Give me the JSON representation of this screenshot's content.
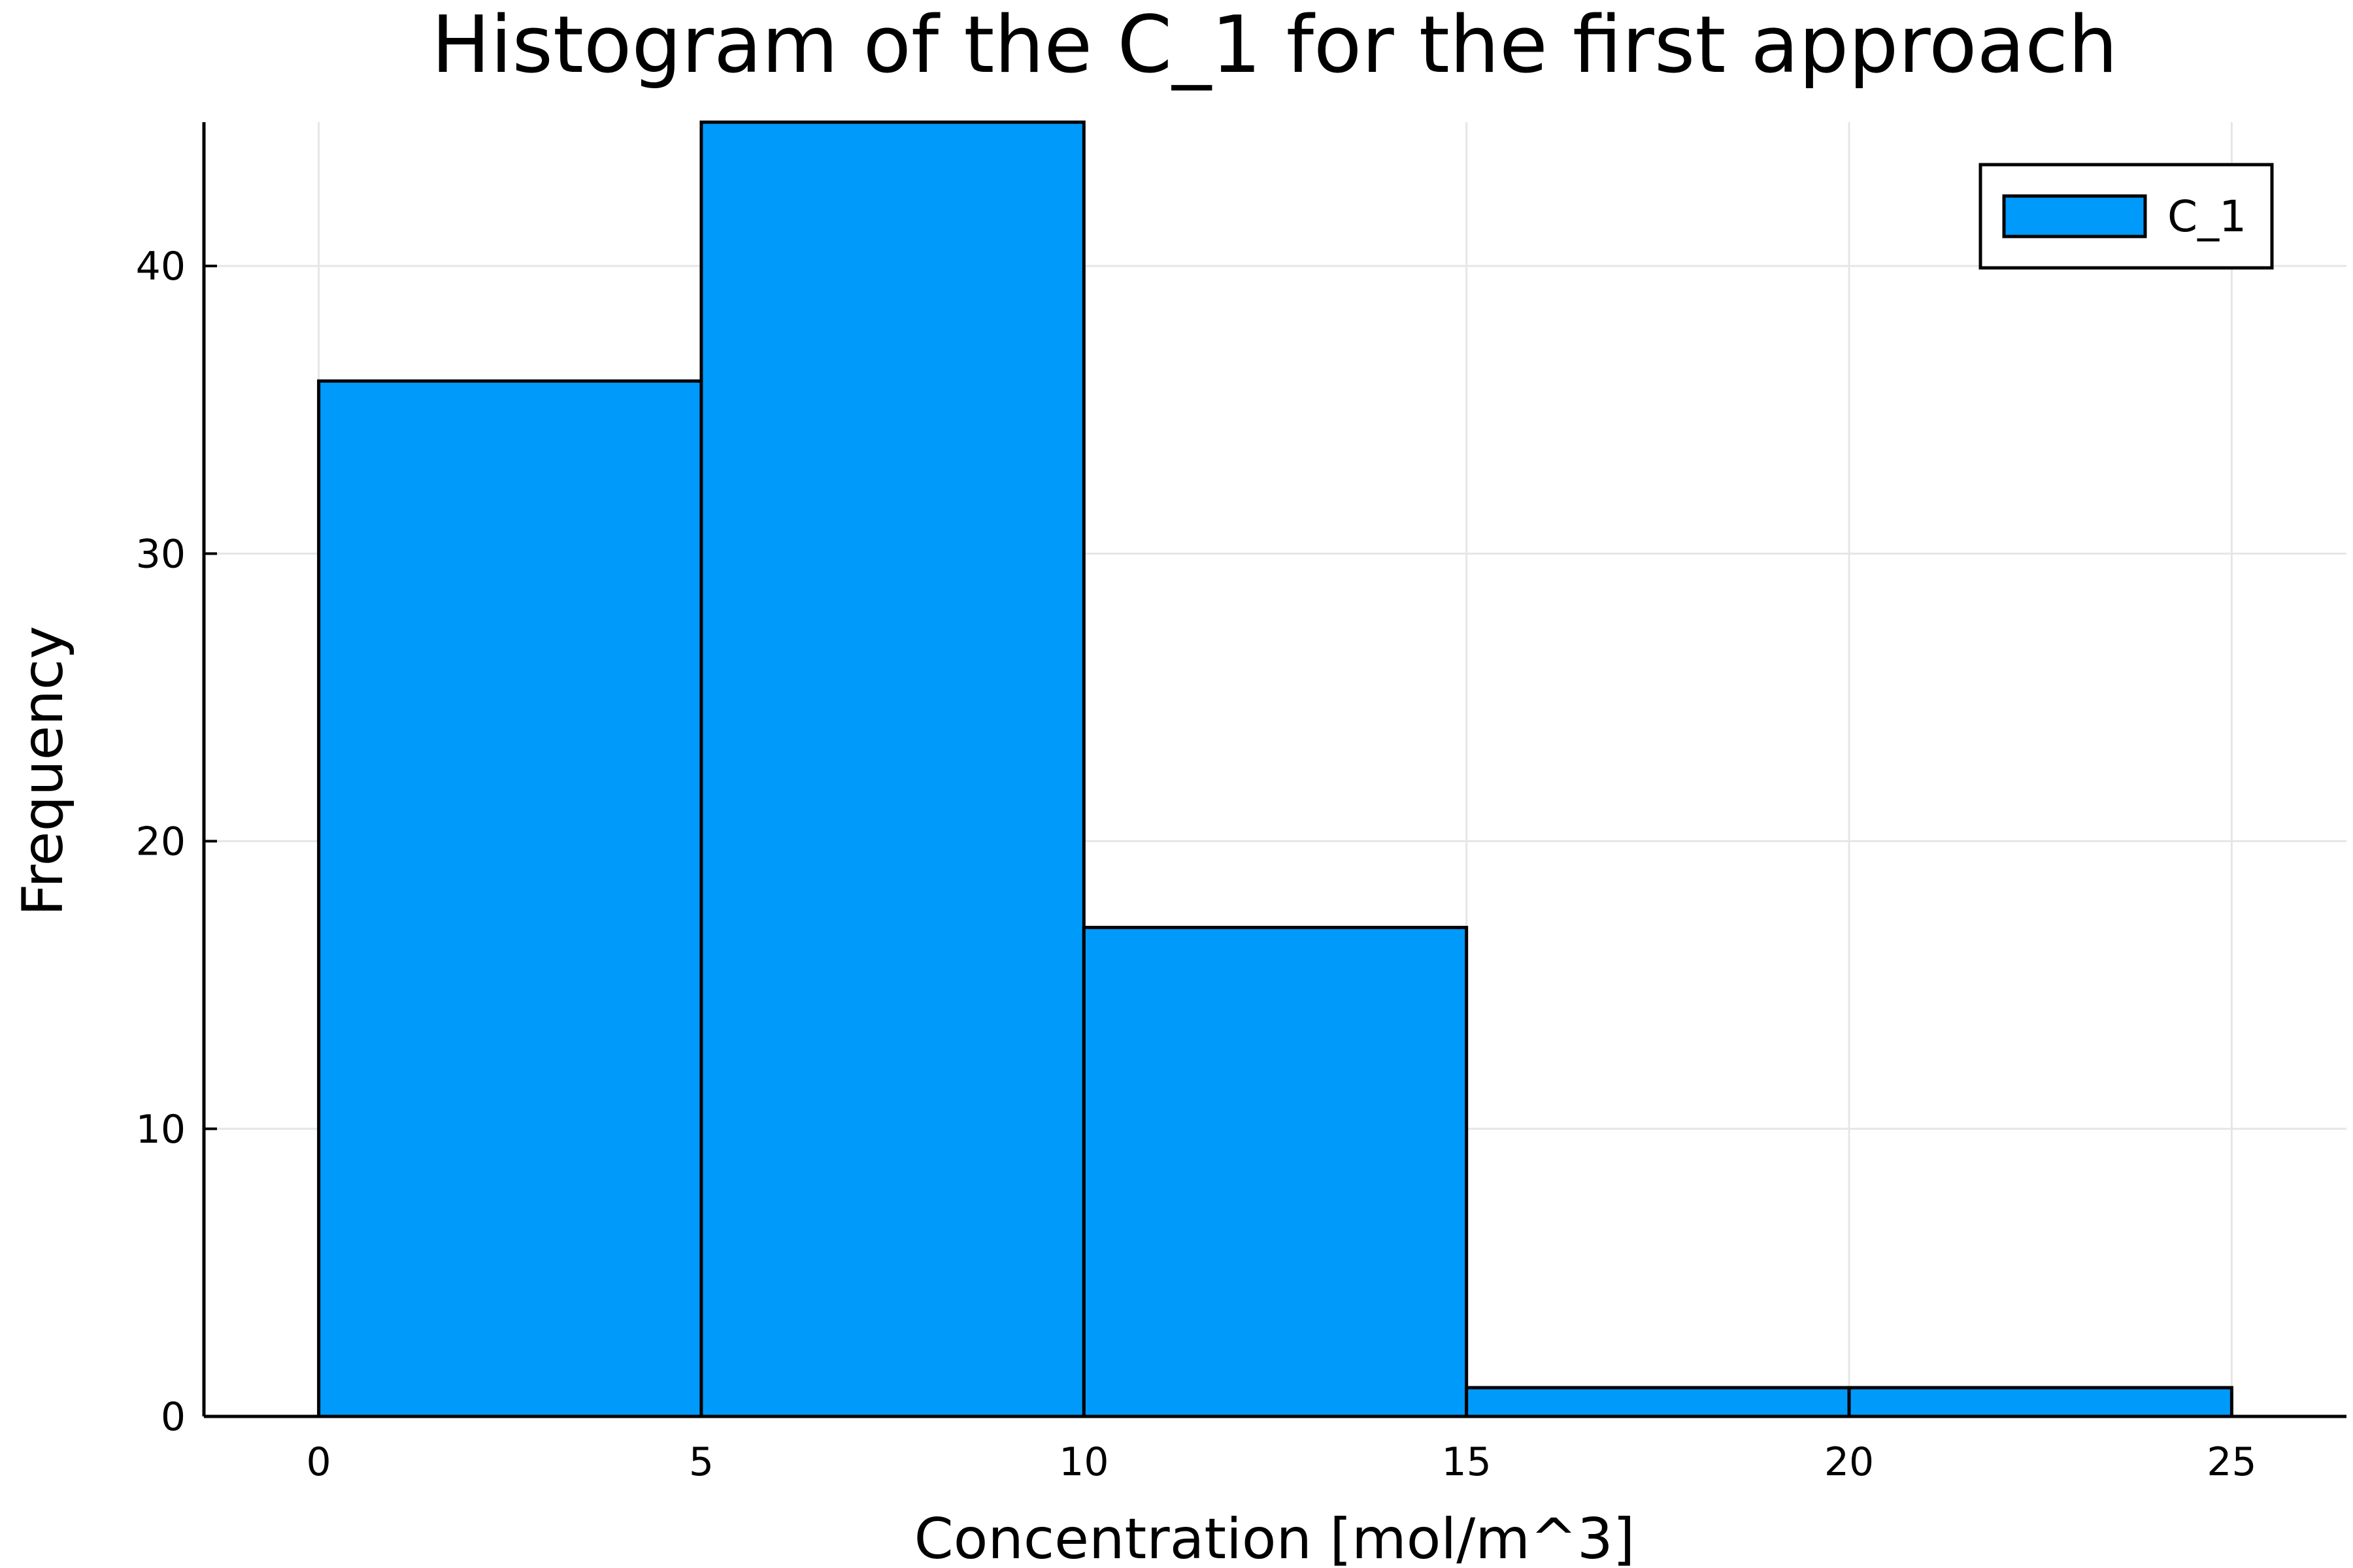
{
  "chart_data": {
    "type": "bar",
    "title": "Histogram of the C_1 for the first approach",
    "xlabel": "Concentration [mol/m^3]",
    "ylabel": "Frequency",
    "bin_edges": [
      0,
      5,
      10,
      15,
      20,
      25
    ],
    "series": [
      {
        "name": "C_1",
        "values": [
          36,
          45,
          17,
          1,
          1
        ],
        "color": "#009AFA"
      }
    ],
    "xlim": [
      -1.5,
      26.5
    ],
    "ylim": [
      0,
      45
    ],
    "xticks": [
      0,
      5,
      10,
      15,
      20,
      25
    ],
    "yticks": [
      0,
      10,
      20,
      30,
      40
    ],
    "grid": true,
    "legend_position": "top-right"
  }
}
